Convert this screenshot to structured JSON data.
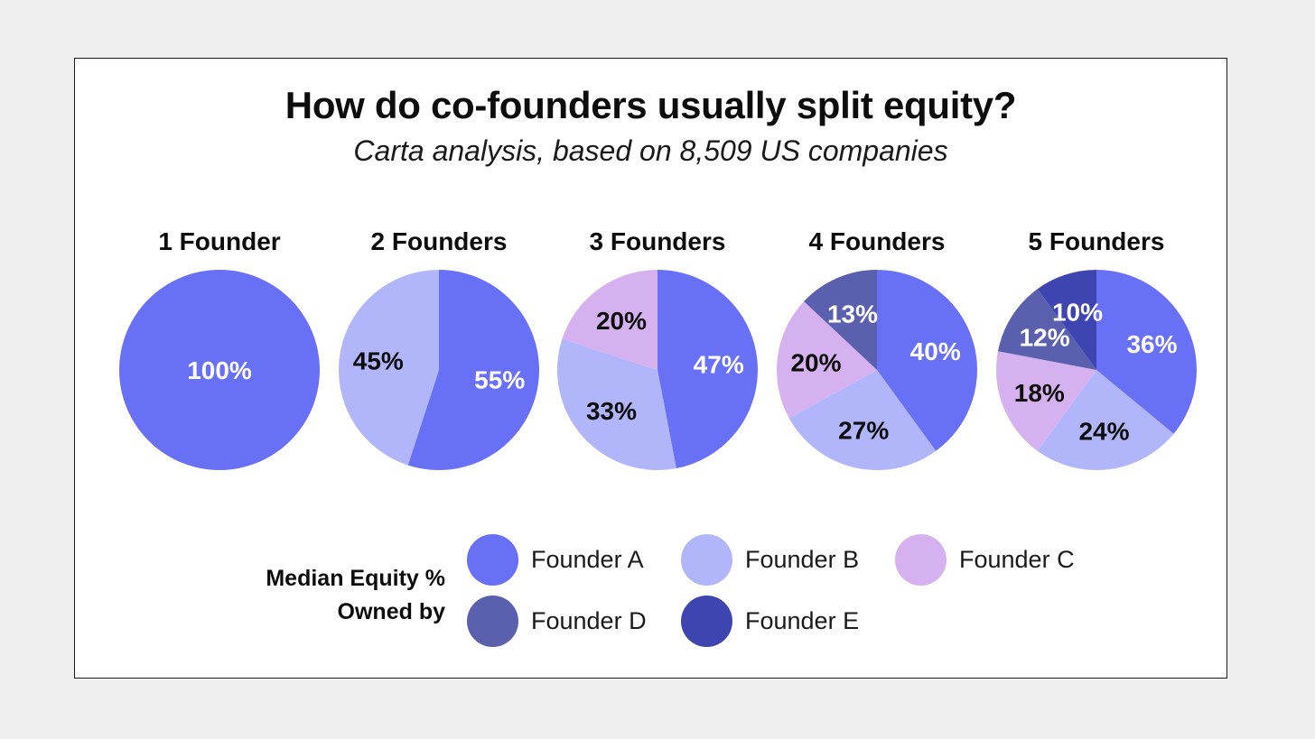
{
  "colors": {
    "founder_a": "#6870f6",
    "founder_b": "#b1b6fb",
    "founder_c": "#d5b2ef",
    "founder_d": "#5a5fae",
    "founder_e": "#3f45b0"
  },
  "chart_data": {
    "type": "pie",
    "title": "How do co-founders usually split equity?",
    "subtitle": "Carta analysis, based on 8,509 US companies",
    "pies": [
      {
        "title": "1 Founder",
        "slices": [
          {
            "founder": "Founder A",
            "value": 100,
            "label": "100%"
          }
        ]
      },
      {
        "title": "2 Founders",
        "slices": [
          {
            "founder": "Founder A",
            "value": 55,
            "label": "55%"
          },
          {
            "founder": "Founder B",
            "value": 45,
            "label": "45%"
          }
        ]
      },
      {
        "title": "3 Founders",
        "slices": [
          {
            "founder": "Founder A",
            "value": 47,
            "label": "47%"
          },
          {
            "founder": "Founder B",
            "value": 33,
            "label": "33%"
          },
          {
            "founder": "Founder C",
            "value": 20,
            "label": "20%"
          }
        ]
      },
      {
        "title": "4 Founders",
        "slices": [
          {
            "founder": "Founder A",
            "value": 40,
            "label": "40%"
          },
          {
            "founder": "Founder B",
            "value": 27,
            "label": "27%"
          },
          {
            "founder": "Founder C",
            "value": 20,
            "label": "20%"
          },
          {
            "founder": "Founder D",
            "value": 13,
            "label": "13%"
          }
        ]
      },
      {
        "title": "5 Founders",
        "slices": [
          {
            "founder": "Founder A",
            "value": 36,
            "label": "36%"
          },
          {
            "founder": "Founder B",
            "value": 24,
            "label": "24%"
          },
          {
            "founder": "Founder C",
            "value": 18,
            "label": "18%"
          },
          {
            "founder": "Founder D",
            "value": 12,
            "label": "12%"
          },
          {
            "founder": "Founder E",
            "value": 10,
            "label": "10%"
          }
        ]
      }
    ],
    "legend": {
      "title_line1": "Median Equity %",
      "title_line2": "Owned by",
      "items": [
        "Founder A",
        "Founder B",
        "Founder C",
        "Founder D",
        "Founder E"
      ]
    }
  }
}
